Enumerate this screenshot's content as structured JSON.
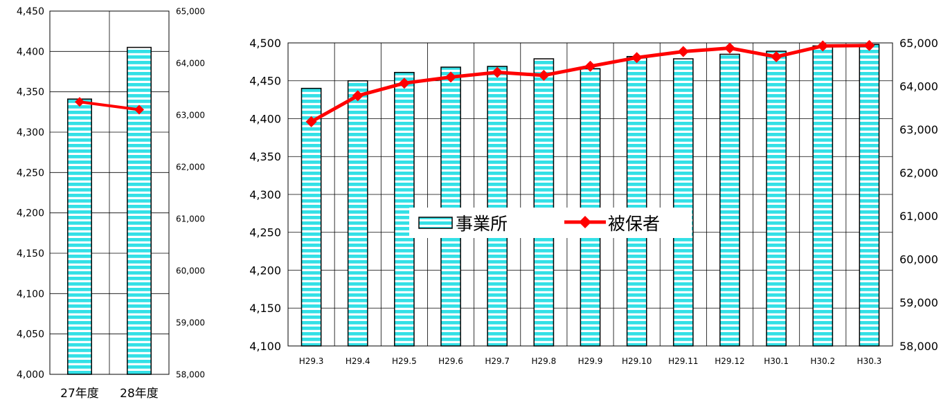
{
  "chart_data": [
    {
      "type": "bar",
      "categories": [
        "27年度",
        "28年度"
      ],
      "series": [
        {
          "name": "事業所",
          "type": "bar",
          "axis": "left",
          "values": [
            4341,
            4405
          ]
        },
        {
          "name": "被保者",
          "type": "line",
          "axis": "right",
          "values": [
            63250,
            63100
          ]
        }
      ],
      "ylim": [
        4000,
        4450
      ],
      "y_ticks": [
        "4,000",
        "4,050",
        "4,100",
        "4,150",
        "4,200",
        "4,250",
        "4,300",
        "4,350",
        "4,400",
        "4,450"
      ],
      "y2lim": [
        58000,
        65000
      ],
      "y2_ticks": [
        "58,000",
        "59,000",
        "60,000",
        "61,000",
        "62,000",
        "63,000",
        "64,000",
        "65,000"
      ],
      "grid": true,
      "legend": "none"
    },
    {
      "type": "bar",
      "categories": [
        "H29.3",
        "H29.4",
        "H29.5",
        "H29.6",
        "H29.7",
        "H29.8",
        "H29.9",
        "H29.10",
        "H29.11",
        "H29.12",
        "H30.1",
        "H30.2",
        "H30.3"
      ],
      "series": [
        {
          "name": "事業所",
          "type": "bar",
          "axis": "left",
          "values": [
            4440,
            4450,
            4461,
            4468,
            4469,
            4479,
            4466,
            4482,
            4479,
            4485,
            4489,
            4496,
            4498
          ]
        },
        {
          "name": "被保者",
          "type": "line",
          "axis": "right",
          "values": [
            63180,
            63780,
            64070,
            64210,
            64320,
            64250,
            64460,
            64660,
            64800,
            64880,
            64680,
            64930,
            64940
          ]
        }
      ],
      "ylim": [
        4100,
        4500
      ],
      "y_ticks": [
        "4,100",
        "4,150",
        "4,200",
        "4,250",
        "4,300",
        "4,350",
        "4,400",
        "4,450",
        "4,500"
      ],
      "y2lim": [
        58000,
        65000
      ],
      "y2_ticks": [
        "58,000",
        "59,000",
        "60,000",
        "61,000",
        "62,000",
        "63,000",
        "64,000",
        "65,000"
      ],
      "grid": true,
      "legend": "center"
    }
  ],
  "colors": {
    "bar_stripe_a": "#33e0e6",
    "bar_stripe_b": "#ffffff",
    "bar_outline": "#000000",
    "line": "#ff0000",
    "grid": "#000000"
  }
}
